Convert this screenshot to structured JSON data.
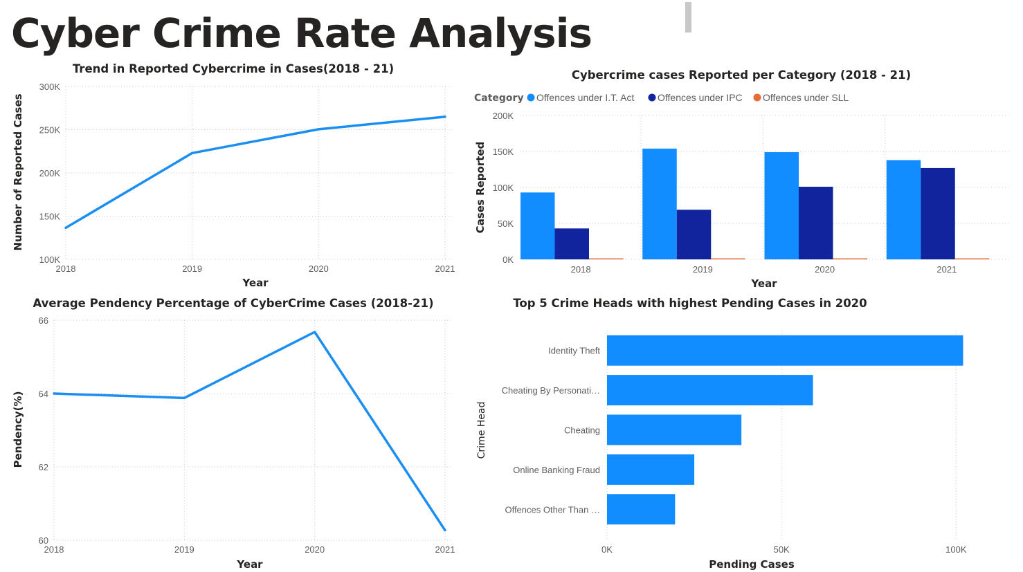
{
  "page": {
    "title": "Cyber Crime Rate Analysis"
  },
  "colors": {
    "title": "#252423",
    "line": "#1B8EF2",
    "it_act": "#118DFF",
    "ipc": "#12239E",
    "sll": "#E66C37",
    "bar": "#118DFF",
    "grid": "#c8c8c8",
    "tick": "#605e5c"
  },
  "chart_data": [
    {
      "id": "trend",
      "type": "line",
      "title": "Trend in Reported Cybercrime in Cases(2018 - 21)",
      "xlabel": "Year",
      "ylabel": "Number of Reported Cases",
      "x": [
        "2018",
        "2019",
        "2020",
        "2021"
      ],
      "series": [
        {
          "values": [
            136500,
            223000,
            250500,
            265000
          ]
        }
      ],
      "ylim": [
        100000,
        300000
      ],
      "yticks": [
        100000,
        150000,
        200000,
        250000,
        300000
      ],
      "ytick_labels": [
        "100K",
        "150K",
        "200K",
        "250K",
        "300K"
      ],
      "grid": true
    },
    {
      "id": "category",
      "type": "bar",
      "title": "Cybercrime cases Reported per Category (2018 - 21)",
      "xlabel": "Year",
      "ylabel": "Cases Reported",
      "legend_title": "Category",
      "legend_position": "top-left",
      "categories": [
        "2018",
        "2019",
        "2020",
        "2021"
      ],
      "series": [
        {
          "name": "Offences under I.T. Act",
          "values": [
            93000,
            154000,
            149000,
            138000
          ]
        },
        {
          "name": "Offences under IPC",
          "values": [
            43000,
            69000,
            101000,
            127000
          ]
        },
        {
          "name": "Offences under SLL",
          "values": [
            500,
            800,
            700,
            800
          ]
        }
      ],
      "ylim": [
        0,
        200000
      ],
      "yticks": [
        0,
        50000,
        100000,
        150000,
        200000
      ],
      "ytick_labels": [
        "0K",
        "50K",
        "100K",
        "150K",
        "200K"
      ],
      "grid": true
    },
    {
      "id": "pendency",
      "type": "line",
      "title": "Average Pendency Percentage of CyberCrime Cases (2018-21)",
      "xlabel": "Year",
      "ylabel": "Pendency(%)",
      "x": [
        "2018",
        "2019",
        "2020",
        "2021"
      ],
      "series": [
        {
          "values": [
            64.0,
            63.88,
            65.68,
            60.27
          ]
        }
      ],
      "ylim": [
        60,
        66
      ],
      "yticks": [
        60,
        62,
        64,
        66
      ],
      "ytick_labels": [
        "60",
        "62",
        "64",
        "66"
      ],
      "grid": true
    },
    {
      "id": "pending",
      "type": "bar",
      "orientation": "horizontal",
      "title": "Top 5 Crime Heads with highest Pending Cases in 2020",
      "xlabel": "Pending Cases",
      "ylabel": "Crime Head",
      "categories": [
        "Identity Theft",
        "Cheating By Personati…",
        "Cheating",
        "Online Banking Fraud",
        "Offences Other Than …"
      ],
      "values": [
        102000,
        59000,
        38500,
        25000,
        19500
      ],
      "xlim": [
        0,
        115000
      ],
      "xticks": [
        0,
        50000,
        100000
      ],
      "xtick_labels": [
        "0K",
        "50K",
        "100K"
      ],
      "grid": true
    }
  ]
}
